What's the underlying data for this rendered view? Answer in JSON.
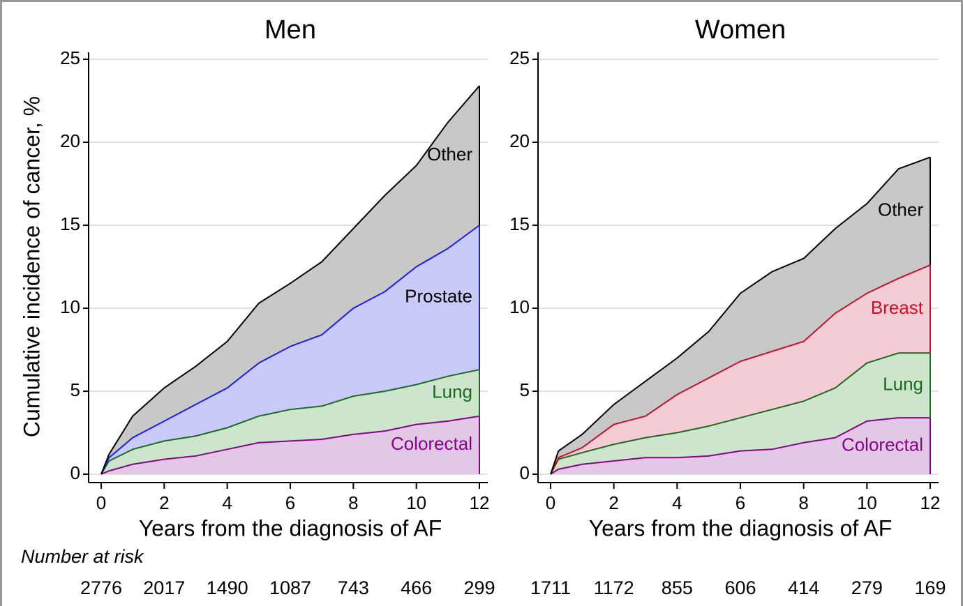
{
  "at_risk_label": "Number at risk",
  "chart_data": [
    {
      "type": "area",
      "stacked": true,
      "title": "Men",
      "xlabel": "Years from the diagnosis of AF",
      "ylabel": "Cumulative incidence of cancer, %",
      "x": [
        0,
        0.25,
        1,
        2,
        3,
        4,
        5,
        6,
        7,
        8,
        9,
        10,
        11,
        12
      ],
      "xlim": [
        0,
        12
      ],
      "xticks": [
        0,
        2,
        4,
        6,
        8,
        10,
        12
      ],
      "ylim": [
        0,
        25
      ],
      "yticks": [
        0,
        5,
        10,
        15,
        20,
        25
      ],
      "grid": true,
      "series": [
        {
          "name": "Colorectal",
          "color": "#8b008b",
          "fill": "#e2c8e6",
          "label_color": "#8b008b",
          "values": [
            0,
            0.2,
            0.6,
            0.9,
            1.1,
            1.5,
            1.9,
            2.0,
            2.1,
            2.4,
            2.6,
            3.0,
            3.2,
            3.5
          ]
        },
        {
          "name": "Lung",
          "color": "#1a6b1a",
          "fill": "#cde4cd",
          "label_color": "#1a6b1a",
          "values": [
            0,
            0.6,
            0.9,
            1.1,
            1.2,
            1.3,
            1.6,
            1.9,
            2.0,
            2.3,
            2.4,
            2.4,
            2.7,
            2.8
          ]
        },
        {
          "name": "Prostate",
          "color": "#1a1aff",
          "fill": "#c8cbf8",
          "label_color": "#000000",
          "values": [
            0,
            0.2,
            0.7,
            1.2,
            1.9,
            2.4,
            3.2,
            3.8,
            4.3,
            5.3,
            6.0,
            7.1,
            7.7,
            8.7
          ]
        },
        {
          "name": "Other",
          "color": "#000000",
          "fill": "#c8c8c8",
          "label_color": "#000000",
          "values": [
            0,
            0.2,
            1.3,
            2.0,
            2.3,
            2.8,
            3.6,
            3.8,
            4.4,
            4.8,
            5.8,
            6.1,
            7.6,
            8.4
          ]
        }
      ],
      "at_risk": [
        2776,
        2017,
        1490,
        1087,
        743,
        466,
        299
      ]
    },
    {
      "type": "area",
      "stacked": true,
      "title": "Women",
      "xlabel": "Years from the diagnosis of AF",
      "x": [
        0,
        0.25,
        1,
        2,
        3,
        4,
        5,
        6,
        7,
        8,
        9,
        10,
        11,
        12
      ],
      "xlim": [
        0,
        12
      ],
      "xticks": [
        0,
        2,
        4,
        6,
        8,
        10,
        12
      ],
      "ylim": [
        0,
        25
      ],
      "yticks": [
        0,
        5,
        10,
        15,
        20,
        25
      ],
      "grid": true,
      "series": [
        {
          "name": "Colorectal",
          "color": "#8b008b",
          "fill": "#e2c8e6",
          "label_color": "#8b008b",
          "values": [
            0,
            0.3,
            0.6,
            0.8,
            1.0,
            1.0,
            1.1,
            1.4,
            1.5,
            1.9,
            2.2,
            3.2,
            3.4,
            3.4
          ]
        },
        {
          "name": "Lung",
          "color": "#1a6b1a",
          "fill": "#cde4cd",
          "label_color": "#1a6b1a",
          "values": [
            0,
            0.6,
            0.7,
            1.0,
            1.2,
            1.5,
            1.8,
            2.0,
            2.4,
            2.5,
            3.0,
            3.5,
            3.9,
            3.9
          ]
        },
        {
          "name": "Breast",
          "color": "#c8102e",
          "fill": "#f3cdd3",
          "label_color": "#c8102e",
          "values": [
            0,
            0.1,
            0.3,
            1.2,
            1.3,
            2.3,
            2.9,
            3.4,
            3.5,
            3.6,
            4.5,
            4.2,
            4.5,
            5.3
          ]
        },
        {
          "name": "Other",
          "color": "#000000",
          "fill": "#c8c8c8",
          "label_color": "#000000",
          "values": [
            0,
            0.4,
            0.8,
            1.2,
            2.1,
            2.2,
            2.8,
            4.1,
            4.8,
            5.0,
            5.1,
            5.4,
            6.6,
            6.5
          ]
        }
      ],
      "at_risk": [
        1711,
        1172,
        855,
        606,
        414,
        279,
        169
      ]
    }
  ]
}
